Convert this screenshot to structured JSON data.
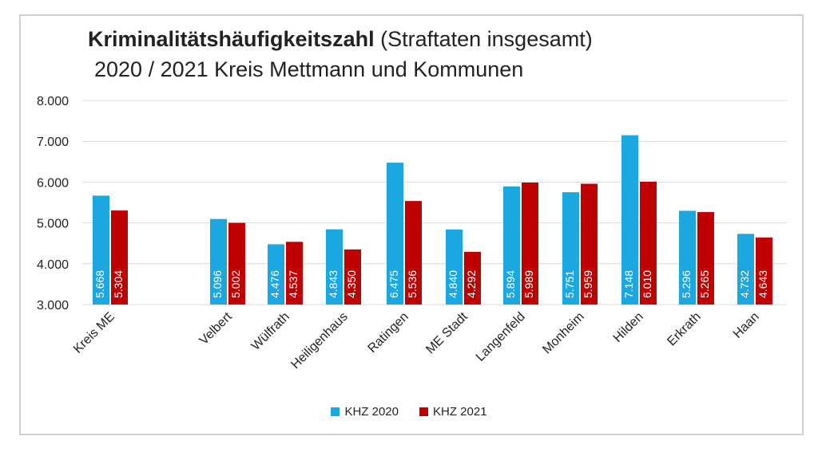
{
  "title": {
    "bold": "Kriminalitätshäufigkeitszahl",
    "rest": "(Straftaten insgesamt)",
    "line2": "2020 / 2021 Kreis Mettmann und Kommunen"
  },
  "colors": {
    "khz2020": "#1ba7e0",
    "khz2021": "#c00000"
  },
  "chart_data": {
    "type": "bar",
    "title": "Kriminalitätshäufigkeitszahl (Straftaten insgesamt) 2020 / 2021 Kreis Mettmann und Kommunen",
    "xlabel": "",
    "ylabel": "",
    "ylim": [
      3000,
      8000
    ],
    "yticks": [
      "3.000",
      "4.000",
      "5.000",
      "6.000",
      "7.000",
      "8.000"
    ],
    "grid": true,
    "legend_position": "bottom",
    "categories": [
      "Kreis ME",
      "Velbert",
      "Wülfrath",
      "Heiligenhaus",
      "Ratingen",
      "ME Stadt",
      "Langenfeld",
      "Monheim",
      "Hilden",
      "Erkrath",
      "Haan"
    ],
    "series": [
      {
        "name": "KHZ 2020",
        "values": [
          5668,
          5096,
          4476,
          4843,
          6475,
          4840,
          5894,
          5751,
          7148,
          5296,
          4732
        ],
        "labels": [
          "5.668",
          "5.096",
          "4.476",
          "4.843",
          "6.475",
          "4.840",
          "5.894",
          "5.751",
          "7.148",
          "5.296",
          "4.732"
        ]
      },
      {
        "name": "KHZ 2021",
        "values": [
          5304,
          5002,
          4537,
          4350,
          5536,
          4292,
          5989,
          5959,
          6010,
          5265,
          4643
        ],
        "labels": [
          "5.304",
          "5.002",
          "4.537",
          "4.350",
          "5.536",
          "4.292",
          "5.989",
          "5.959",
          "6.010",
          "5.265",
          "4.643"
        ]
      }
    ]
  }
}
